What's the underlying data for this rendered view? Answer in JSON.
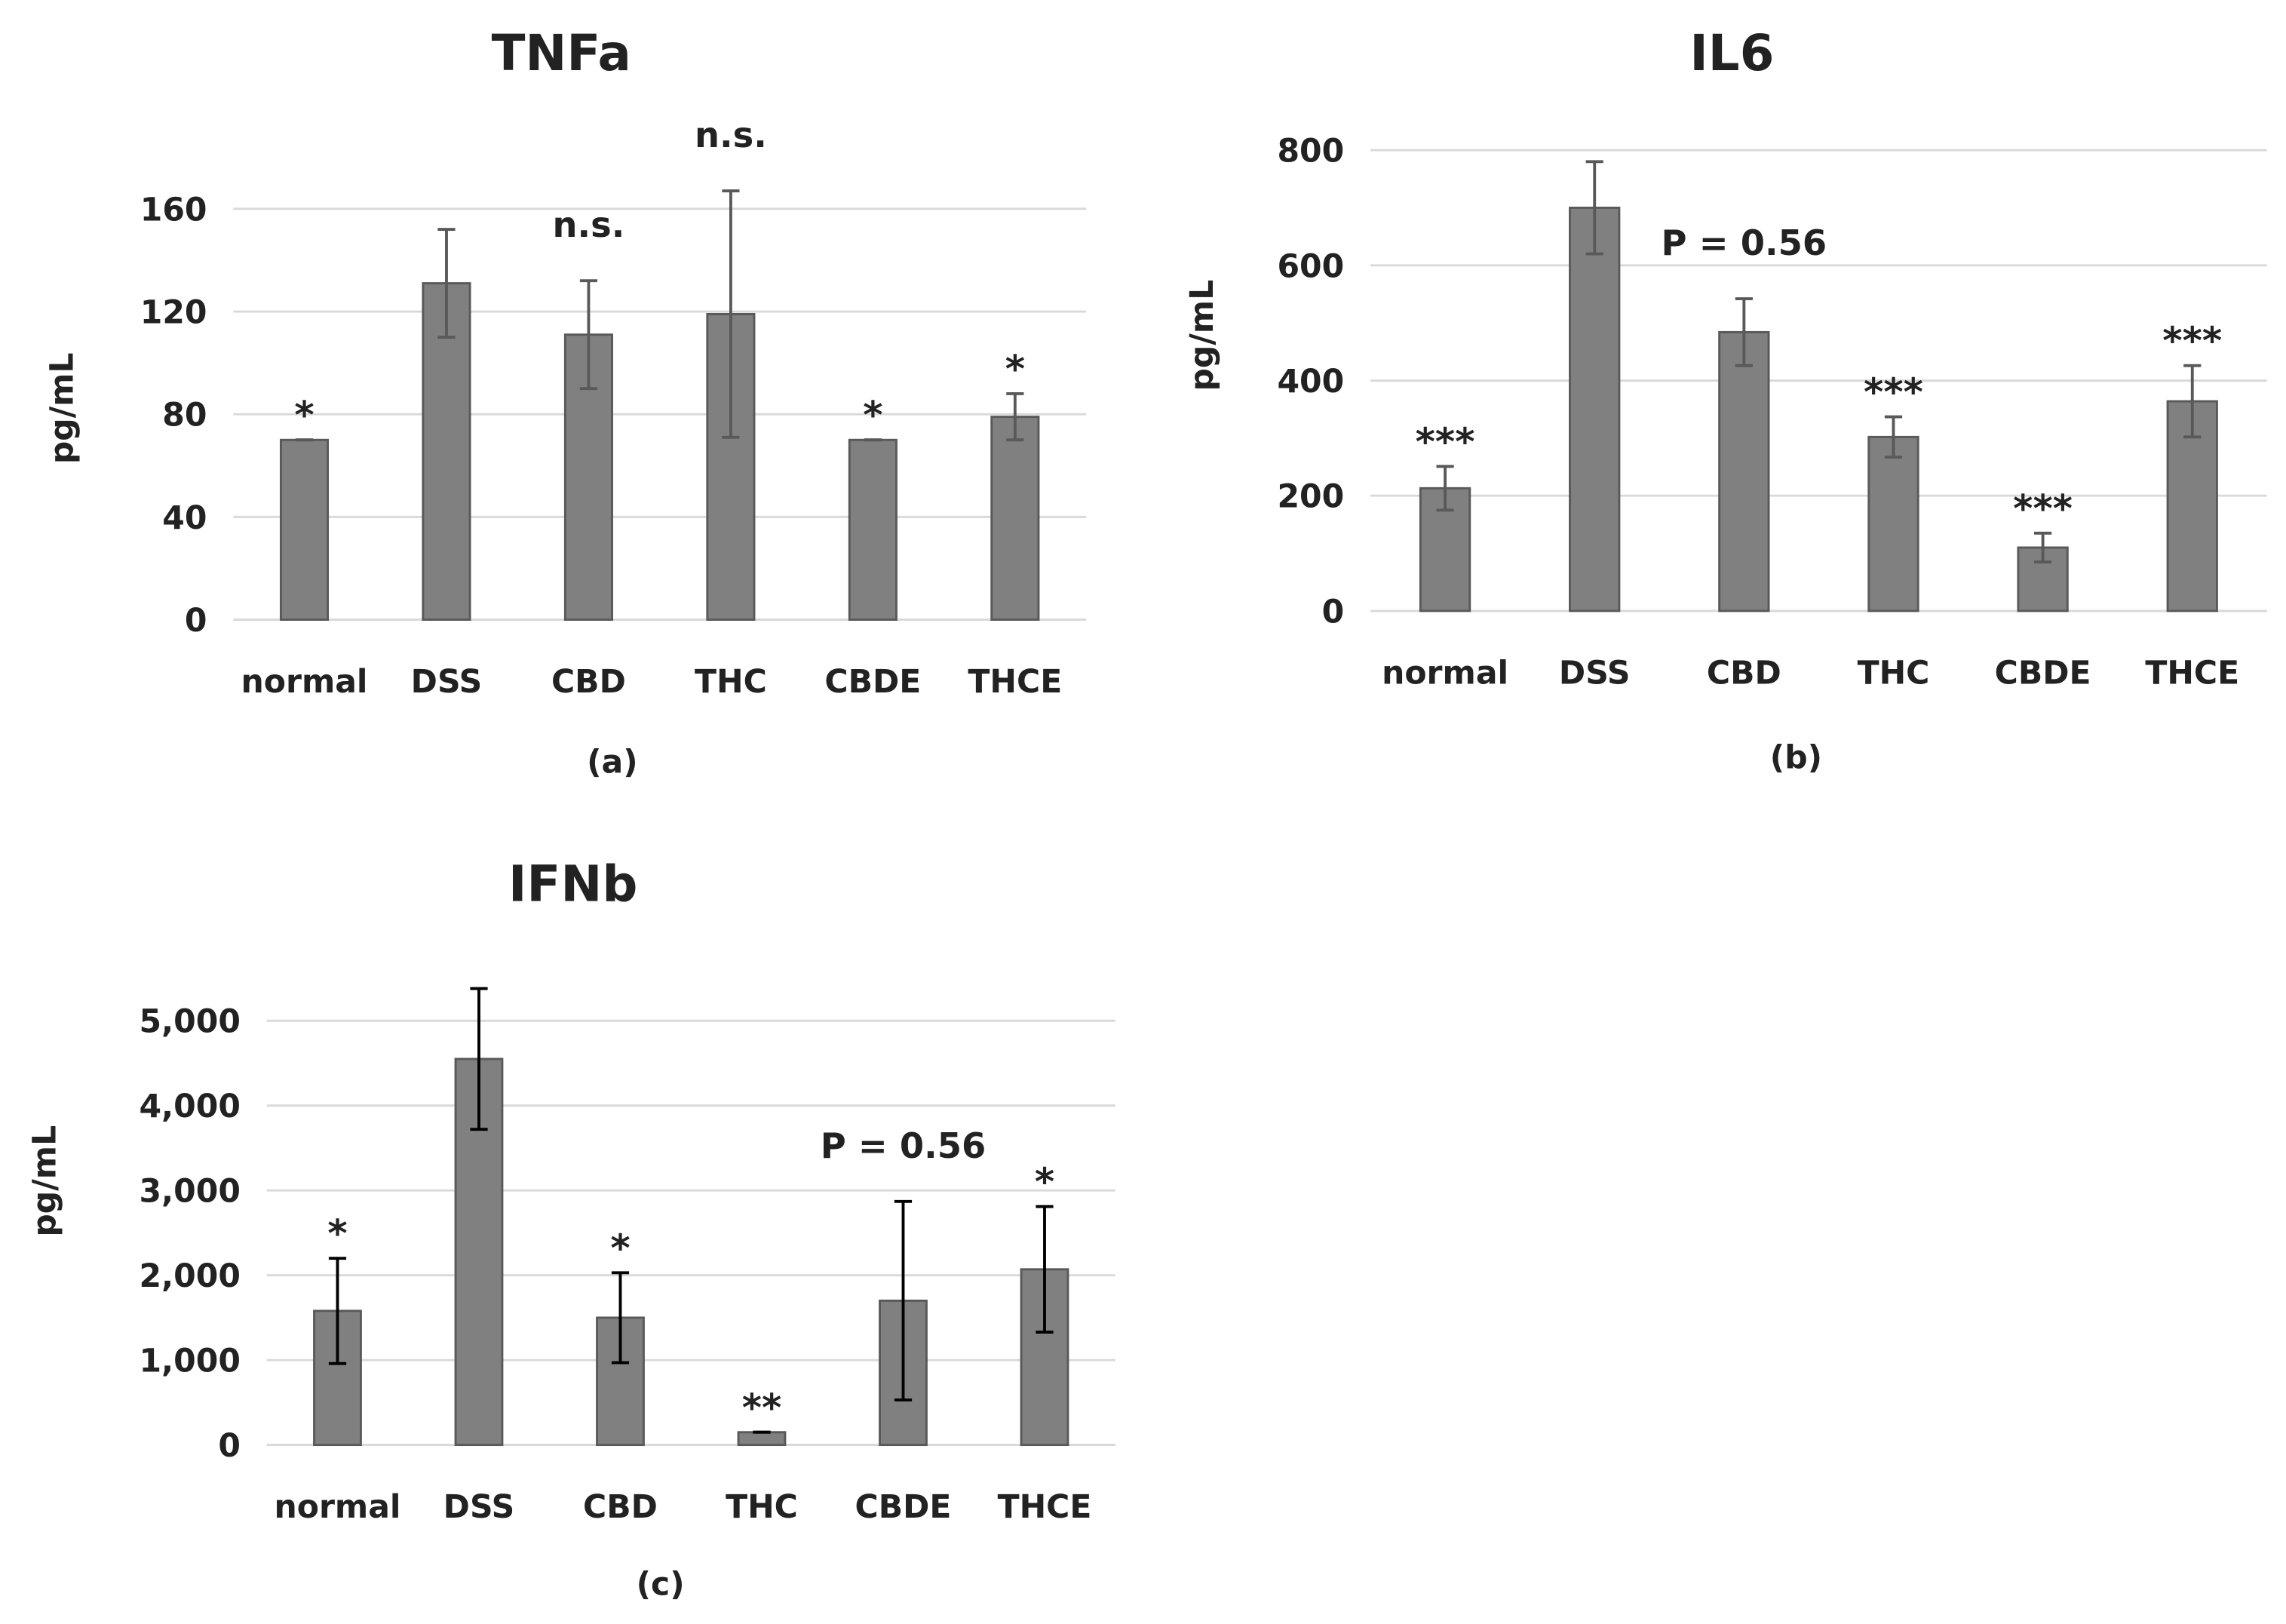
{
  "chart_data": [
    {
      "type": "bar",
      "title": "TNFa",
      "panel_label": "(a)",
      "y_label": "pg/mL",
      "categories": [
        "normal",
        "DSS",
        "CBD",
        "THC",
        "CBDE",
        "THCE"
      ],
      "values": [
        70,
        131,
        111,
        119,
        70,
        79
      ],
      "errors": [
        0,
        21,
        21,
        48,
        0,
        9
      ],
      "annotations": [
        "*",
        null,
        "n.s.",
        "n.s.",
        "*",
        "*"
      ],
      "color": "#808080",
      "ylim": [
        0,
        180
      ],
      "yticks": [
        0,
        40,
        80,
        120,
        160
      ],
      "grid": true
    },
    {
      "type": "bar",
      "title": "IL6",
      "panel_label": "(b)",
      "y_label": "pg/mL",
      "categories": [
        "normal",
        "DSS",
        "CBD",
        "THC",
        "CBDE",
        "THCE"
      ],
      "values": [
        213,
        700,
        484,
        302,
        110,
        364
      ],
      "errors": [
        38,
        80,
        58,
        35,
        25,
        62
      ],
      "annotations": [
        "***",
        null,
        "P = 0.56",
        "***",
        "***",
        "***"
      ],
      "color": "#808080",
      "ylim": [
        0,
        800
      ],
      "yticks": [
        0,
        200,
        400,
        600,
        800
      ],
      "grid": true
    },
    {
      "type": "bar",
      "title": "IFNb",
      "panel_label": "(c)",
      "y_label": "pg/mL",
      "categories": [
        "normal",
        "DSS",
        "CBD",
        "THC",
        "CBDE",
        "THCE"
      ],
      "values": [
        1580,
        4550,
        1500,
        150,
        1700,
        2070
      ],
      "errors": [
        620,
        830,
        530,
        0,
        1170,
        740
      ],
      "annotations": [
        "*",
        null,
        "*",
        "**",
        "P = 0.56",
        "*"
      ],
      "color": "#808080",
      "ylim": [
        0,
        5500
      ],
      "yticks": [
        0,
        {
          "value": 1000,
          "label": "1,000"
        },
        {
          "value": 2000,
          "label": "2,000"
        },
        {
          "value": 3000,
          "label": "3,000"
        },
        {
          "value": 4000,
          "label": "4,000"
        },
        {
          "value": 5000,
          "label": "5,000"
        }
      ],
      "grid": true
    }
  ]
}
